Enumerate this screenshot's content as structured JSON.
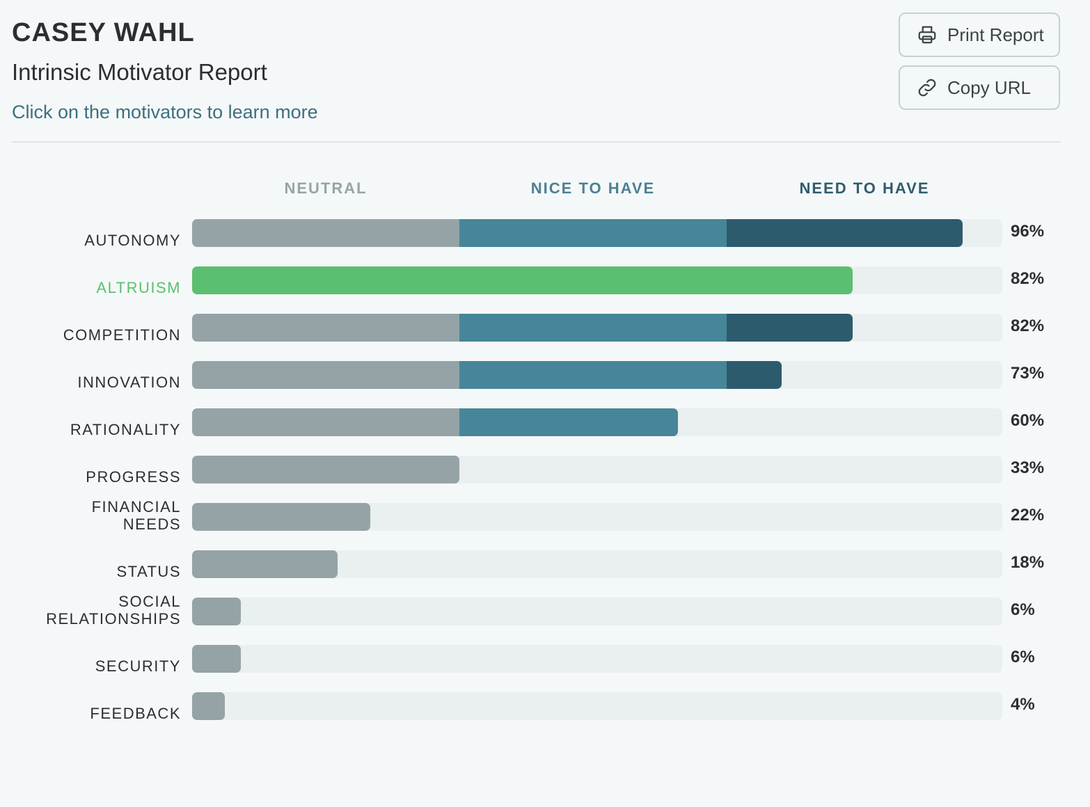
{
  "header": {
    "name": "CASEY WAHL",
    "report_title": "Intrinsic Motivator Report",
    "learn_more": "Click on the motivators to learn more"
  },
  "actions": {
    "print_label": "Print Report",
    "copy_label": "Copy URL"
  },
  "colors": {
    "neutral": "#95a3a7",
    "nice": "#478599",
    "need": "#2c5b6d",
    "highlight": "#5bbf72",
    "track": "#eaeff0",
    "header_neutral": "#96a4a8",
    "header_nice": "#4c8194",
    "header_need": "#2f5d6e"
  },
  "chart_data": {
    "type": "bar",
    "orientation": "horizontal",
    "zones": [
      "NEUTRAL",
      "NICE TO HAVE",
      "NEED TO HAVE"
    ],
    "zone_bounds": [
      0,
      33,
      66,
      100
    ],
    "highlighted": "ALTRUISM",
    "categories": [
      "AUTONOMY",
      "ALTRUISM",
      "COMPETITION",
      "INNOVATION",
      "RATIONALITY",
      "PROGRESS",
      "FINANCIAL\nNEEDS",
      "STATUS",
      "SOCIAL\nRELATIONSHIPS",
      "SECURITY",
      "FEEDBACK"
    ],
    "values": [
      96,
      82,
      82,
      73,
      60,
      33,
      22,
      18,
      6,
      6,
      4
    ],
    "value_labels": [
      "96%",
      "82%",
      "82%",
      "73%",
      "60%",
      "33%",
      "22%",
      "18%",
      "6%",
      "6%",
      "4%"
    ],
    "xlim": [
      0,
      100
    ]
  }
}
